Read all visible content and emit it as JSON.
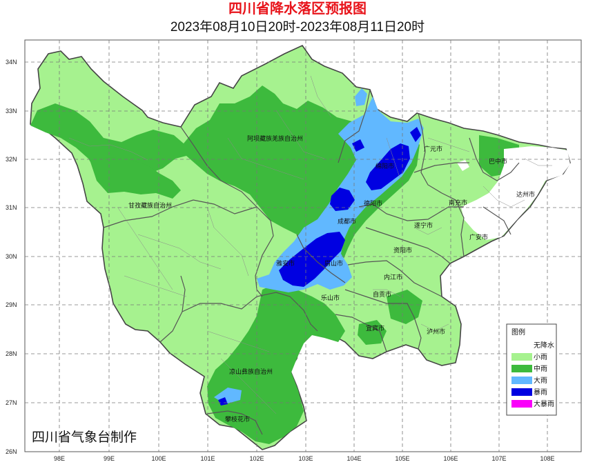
{
  "title": "四川省降水落区预报图",
  "subtitle": "2023年08月10日20时-2023年08月11日20时",
  "credit": "四川省气象台制作",
  "axes": {
    "lat_labels": [
      "34N",
      "33N",
      "32N",
      "31N",
      "30N",
      "29N",
      "28N",
      "27N",
      "26N"
    ],
    "lon_labels": [
      "98E",
      "99E",
      "100E",
      "101E",
      "102E",
      "103E",
      "104E",
      "105E",
      "106E",
      "107E",
      "108E"
    ]
  },
  "legend": {
    "title": "图例",
    "items": [
      {
        "label": "无降水",
        "color": "#ffffff"
      },
      {
        "label": "小雨",
        "color": "#a6f28f"
      },
      {
        "label": "中雨",
        "color": "#3dba3d"
      },
      {
        "label": "大雨",
        "color": "#61b8ff"
      },
      {
        "label": "暴雨",
        "color": "#0000e1"
      },
      {
        "label": "大暴雨",
        "color": "#fa00fa"
      }
    ]
  },
  "places": {
    "aba": "阿坝藏族羌族自治州",
    "ganzi": "甘孜藏族自治州",
    "liangshan": "凉山彝族自治州",
    "guangyuan": "广元市",
    "bazhong": "巴中市",
    "mianyang": "绵阳市",
    "dazhou": "达州市",
    "deyang": "德阳市",
    "nanchong": "南充市",
    "chengdu": "成都市",
    "suining": "遂宁市",
    "guangan": "广安市",
    "ziyang": "资阳市",
    "yaan": "雅安市",
    "meishan": "眉山市",
    "neijiang": "内江市",
    "leshan": "乐山市",
    "zigong": "自贡市",
    "yibin": "宜宾市",
    "luzhou": "泸州市",
    "panzhihua": "攀枝花市"
  },
  "colors": {
    "none": "#ffffff",
    "light": "#a6f28f",
    "moderate": "#3dba3d",
    "heavy": "#61b8ff",
    "rainstorm": "#0000e1",
    "title": "#e8141b"
  }
}
